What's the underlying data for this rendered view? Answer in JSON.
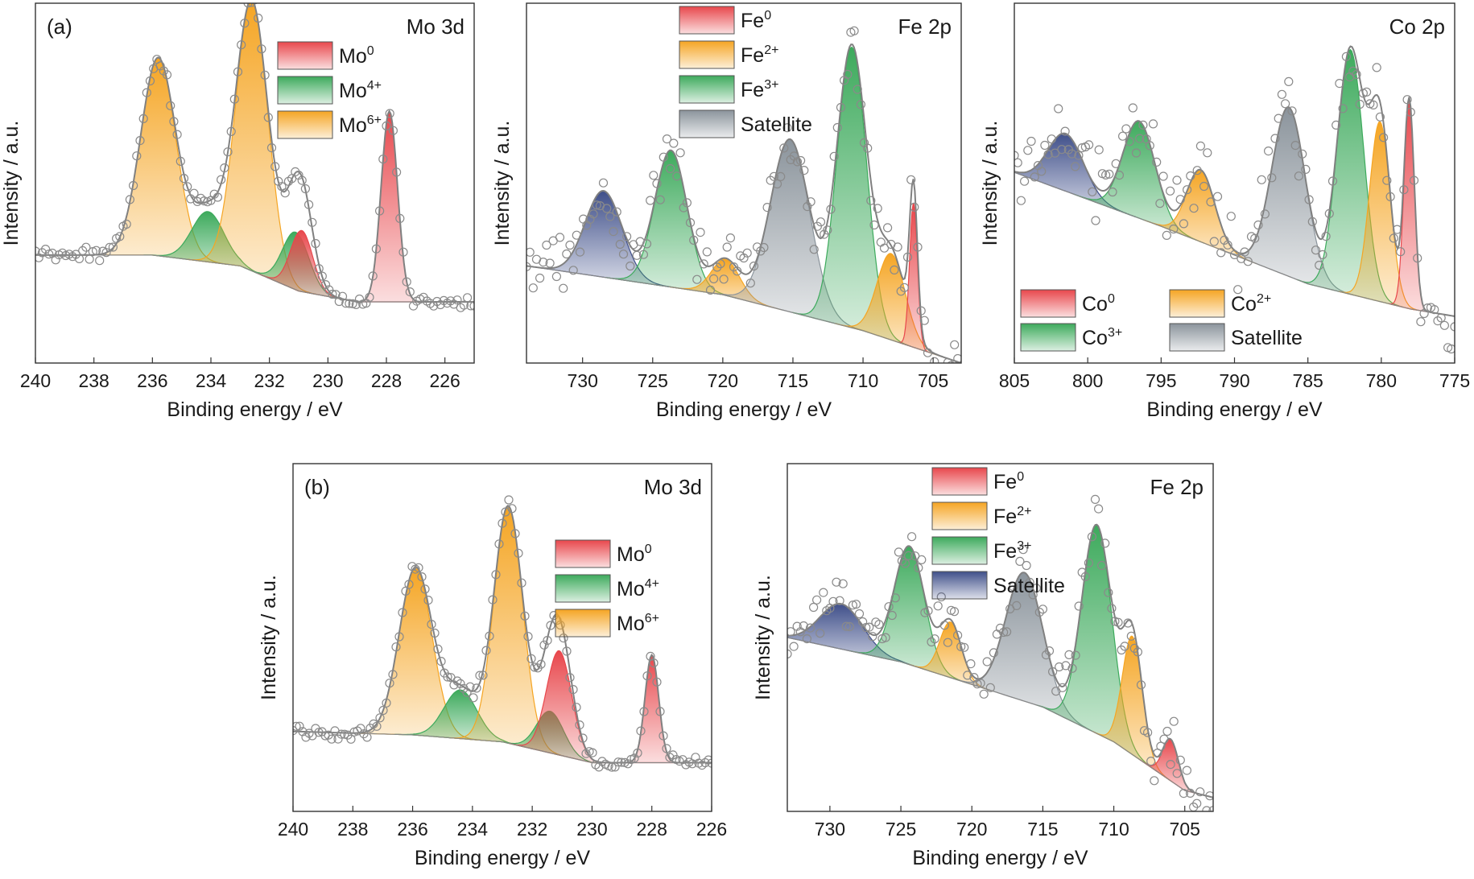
{
  "colors": {
    "red": "#e8474c",
    "orange": "#f5a523",
    "green": "#3daa5c",
    "gray": "#8b949c",
    "navy": "#3f4f8a",
    "envelope": "#808080",
    "points": "#8a8a8a"
  },
  "figure": {
    "tag_a": "(a)",
    "tag_b": "(b)"
  },
  "chart_data": [
    {
      "id": "a-mo3d",
      "type": "area",
      "title": "Mo 3d",
      "tag": "(a)",
      "xlabel": "Binding energy / eV",
      "ylabel": "Intensity / a.u.",
      "xlim": [
        240,
        225
      ],
      "ylim": [
        0,
        1
      ],
      "xticks": [
        240,
        238,
        236,
        234,
        232,
        230,
        228,
        226
      ],
      "baseline": [
        [
          240,
          0.3
        ],
        [
          236,
          0.3
        ],
        [
          233,
          0.27
        ],
        [
          231,
          0.2
        ],
        [
          229,
          0.17
        ],
        [
          225,
          0.17
        ]
      ],
      "legend": {
        "position": "top-center",
        "items": [
          {
            "base": "Mo",
            "sup": "0",
            "color": "red"
          },
          {
            "base": "Mo",
            "sup": "4+",
            "color": "green"
          },
          {
            "base": "Mo",
            "sup": "6+",
            "color": "orange"
          }
        ]
      },
      "peaks": [
        {
          "center": 235.8,
          "height": 0.55,
          "sigma": 0.6,
          "color": "orange"
        },
        {
          "center": 234.1,
          "height": 0.14,
          "sigma": 0.55,
          "color": "green"
        },
        {
          "center": 232.6,
          "height": 0.75,
          "sigma": 0.55,
          "color": "orange"
        },
        {
          "center": 231.1,
          "height": 0.16,
          "sigma": 0.45,
          "color": "green"
        },
        {
          "center": 230.9,
          "height": 0.17,
          "sigma": 0.38,
          "color": "red"
        },
        {
          "center": 227.9,
          "height": 0.53,
          "sigma": 0.28,
          "color": "red"
        }
      ],
      "noise": 0.015,
      "seed": 11
    },
    {
      "id": "a-fe2p",
      "type": "area",
      "title": "Fe 2p",
      "xlabel": "Binding energy / eV",
      "ylabel": "Intensity / a.u.",
      "xlim": [
        734,
        703
      ],
      "ylim": [
        0,
        1
      ],
      "xticks": [
        730,
        725,
        720,
        715,
        710,
        705
      ],
      "baseline": [
        [
          734,
          0.27
        ],
        [
          720,
          0.19
        ],
        [
          710,
          0.09
        ],
        [
          703,
          0.0
        ]
      ],
      "legend": {
        "position": "top-left",
        "items": [
          {
            "base": "Fe",
            "sup": "0",
            "color": "red"
          },
          {
            "base": "Fe",
            "sup": "2+",
            "color": "orange"
          },
          {
            "base": "Fe",
            "sup": "3+",
            "color": "green"
          },
          {
            "base": "Satellite",
            "sup": "",
            "color": "gray"
          }
        ]
      },
      "peaks": [
        {
          "center": 728.5,
          "height": 0.24,
          "sigma": 1.3,
          "color": "navy"
        },
        {
          "center": 723.7,
          "height": 0.38,
          "sigma": 1.15,
          "color": "green"
        },
        {
          "center": 719.8,
          "height": 0.1,
          "sigma": 1.0,
          "color": "orange"
        },
        {
          "center": 715.2,
          "height": 0.48,
          "sigma": 1.4,
          "color": "gray"
        },
        {
          "center": 710.8,
          "height": 0.78,
          "sigma": 1.05,
          "color": "green"
        },
        {
          "center": 708.0,
          "height": 0.24,
          "sigma": 1.0,
          "color": "orange"
        },
        {
          "center": 706.4,
          "height": 0.4,
          "sigma": 0.28,
          "color": "red"
        }
      ],
      "noise": 0.06,
      "seed": 23
    },
    {
      "id": "a-co2p",
      "type": "area",
      "title": "Co 2p",
      "xlabel": "Binding energy / eV",
      "ylabel": "Intensity / a.u.",
      "xlim": [
        805,
        775
      ],
      "ylim": [
        0,
        1
      ],
      "xticks": [
        805,
        800,
        795,
        790,
        785,
        780,
        775
      ],
      "baseline": [
        [
          805,
          0.53
        ],
        [
          795,
          0.38
        ],
        [
          785,
          0.22
        ],
        [
          778,
          0.15
        ],
        [
          775,
          0.13
        ]
      ],
      "legend": {
        "position": "bottom-left",
        "items": [
          {
            "base": "Co",
            "sup": "0",
            "color": "red"
          },
          {
            "base": "Co",
            "sup": "2+",
            "color": "orange"
          },
          {
            "base": "Co",
            "sup": "3+",
            "color": "green"
          },
          {
            "base": "Satellite",
            "sup": "",
            "color": "gray"
          }
        ]
      },
      "peaks": [
        {
          "center": 801.5,
          "height": 0.16,
          "sigma": 1.2,
          "color": "navy"
        },
        {
          "center": 796.5,
          "height": 0.27,
          "sigma": 1.1,
          "color": "green"
        },
        {
          "center": 792.3,
          "height": 0.2,
          "sigma": 0.95,
          "color": "orange"
        },
        {
          "center": 786.3,
          "height": 0.47,
          "sigma": 1.15,
          "color": "gray"
        },
        {
          "center": 782.1,
          "height": 0.68,
          "sigma": 0.9,
          "color": "green"
        },
        {
          "center": 780.1,
          "height": 0.5,
          "sigma": 0.7,
          "color": "orange"
        },
        {
          "center": 778.1,
          "height": 0.58,
          "sigma": 0.35,
          "color": "red"
        }
      ],
      "noise": 0.08,
      "seed": 37
    },
    {
      "id": "b-mo3d",
      "type": "area",
      "title": "Mo 3d",
      "tag": "(b)",
      "xlabel": "Binding energy / eV",
      "ylabel": "Intensity / a.u.",
      "xlim": [
        240,
        226
      ],
      "ylim": [
        0,
        1
      ],
      "xticks": [
        240,
        238,
        236,
        234,
        232,
        230,
        228,
        226
      ],
      "baseline": [
        [
          240,
          0.23
        ],
        [
          236,
          0.22
        ],
        [
          233,
          0.2
        ],
        [
          230,
          0.14
        ],
        [
          228,
          0.14
        ],
        [
          226,
          0.14
        ]
      ],
      "legend": {
        "position": "top-right",
        "items": [
          {
            "base": "Mo",
            "sup": "0",
            "color": "red"
          },
          {
            "base": "Mo",
            "sup": "4+",
            "color": "green"
          },
          {
            "base": "Mo",
            "sup": "6+",
            "color": "orange"
          }
        ]
      },
      "peaks": [
        {
          "center": 235.9,
          "height": 0.48,
          "sigma": 0.55,
          "color": "orange"
        },
        {
          "center": 234.4,
          "height": 0.14,
          "sigma": 0.55,
          "color": "green"
        },
        {
          "center": 232.8,
          "height": 0.68,
          "sigma": 0.48,
          "color": "orange"
        },
        {
          "center": 231.4,
          "height": 0.12,
          "sigma": 0.45,
          "color": "green"
        },
        {
          "center": 231.1,
          "height": 0.3,
          "sigma": 0.42,
          "color": "red"
        },
        {
          "center": 228.0,
          "height": 0.31,
          "sigma": 0.23,
          "color": "red"
        }
      ],
      "noise": 0.015,
      "seed": 51
    },
    {
      "id": "b-fe2p",
      "type": "area",
      "title": "Fe 2p",
      "xlabel": "Binding energy / eV",
      "ylabel": "Intensity / a.u.",
      "xlim": [
        733,
        703
      ],
      "ylim": [
        0,
        1
      ],
      "xticks": [
        730,
        725,
        720,
        715,
        710,
        705
      ],
      "baseline": [
        [
          733,
          0.5
        ],
        [
          725,
          0.43
        ],
        [
          715,
          0.3
        ],
        [
          710,
          0.2
        ],
        [
          705,
          0.06
        ],
        [
          703,
          0.04
        ]
      ],
      "legend": {
        "position": "top-left",
        "items": [
          {
            "base": "Fe",
            "sup": "0",
            "color": "red"
          },
          {
            "base": "Fe",
            "sup": "2+",
            "color": "orange"
          },
          {
            "base": "Fe",
            "sup": "3+",
            "color": "green"
          },
          {
            "base": "Satellite",
            "sup": "",
            "color": "navy"
          }
        ]
      },
      "peaks": [
        {
          "center": 729.2,
          "height": 0.13,
          "sigma": 1.5,
          "color": "navy"
        },
        {
          "center": 724.4,
          "height": 0.34,
          "sigma": 1.05,
          "color": "green"
        },
        {
          "center": 721.5,
          "height": 0.16,
          "sigma": 0.75,
          "color": "orange"
        },
        {
          "center": 716.3,
          "height": 0.37,
          "sigma": 1.3,
          "color": "gray"
        },
        {
          "center": 711.2,
          "height": 0.6,
          "sigma": 1.05,
          "color": "green"
        },
        {
          "center": 708.7,
          "height": 0.34,
          "sigma": 0.7,
          "color": "orange"
        },
        {
          "center": 706.0,
          "height": 0.12,
          "sigma": 0.55,
          "color": "red"
        }
      ],
      "noise": 0.06,
      "seed": 67
    }
  ]
}
